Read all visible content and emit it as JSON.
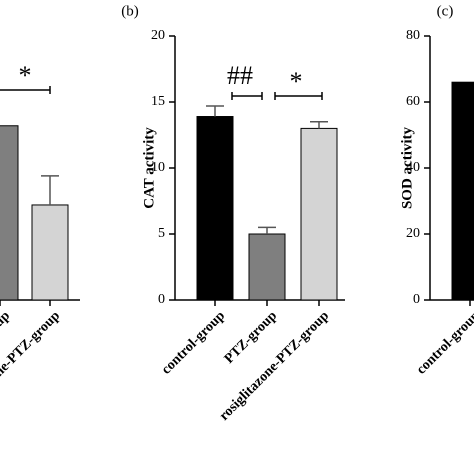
{
  "chart_data": [
    {
      "type": "bar",
      "categories": [
        "PTZ-group",
        "rosiglitazone-PTZ-group"
      ],
      "values": [
        13.2,
        7.2
      ],
      "errors": [
        null,
        2.2
      ],
      "colors": [
        "#7f7f7f",
        "#d4d4d4"
      ],
      "ylim": [
        0,
        20
      ],
      "annotations": [
        "*"
      ]
    },
    {
      "type": "bar",
      "title": "(b)",
      "y_label": "CAT activity",
      "categories": [
        "control-group",
        "PTZ-group",
        "rosiglitazone-PTZ-group"
      ],
      "values": [
        13.9,
        5.0,
        13.0
      ],
      "errors": [
        0.8,
        0.5,
        0.5
      ],
      "colors": [
        "#000000",
        "#7f7f7f",
        "#d4d4d4"
      ],
      "ylim": [
        0,
        20
      ],
      "yticks": [
        0,
        5,
        10,
        15,
        20
      ],
      "annotations": [
        "##",
        "*"
      ]
    },
    {
      "type": "bar",
      "title": "(c)",
      "y_label": "SOD activity",
      "categories": [
        "control-group"
      ],
      "values": [
        66
      ],
      "colors": [
        "#000000"
      ],
      "ylim": [
        0,
        80
      ],
      "yticks": [
        0,
        20,
        40,
        60,
        80
      ]
    }
  ]
}
